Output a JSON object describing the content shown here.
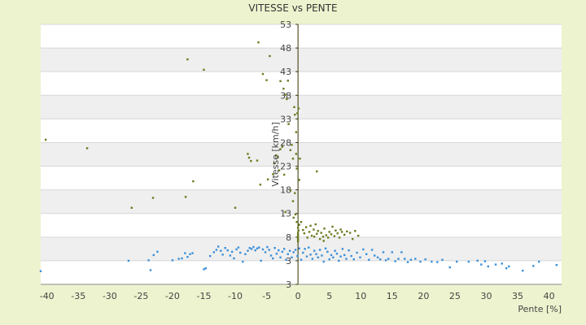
{
  "chart_data": {
    "type": "scatter",
    "title": "VITESSE vs PENTE",
    "xlabel": "Pente [%]",
    "ylabel": "Vitesse [km/h]",
    "xlim": [
      -41,
      42
    ],
    "ylim": [
      -2,
      53
    ],
    "x_ticks": [
      "-40",
      "-35",
      "-30",
      "-25",
      "-20",
      "-15",
      "-10",
      "-5",
      "0",
      "5",
      "10",
      "15",
      "20",
      "25",
      "30",
      "35",
      "40"
    ],
    "y_ticks": [
      "3",
      "3",
      "8",
      "13",
      "18",
      "23",
      "28",
      "33",
      "38",
      "43",
      "48",
      "53"
    ],
    "grid": "horizontal",
    "legend": "none",
    "colors": {
      "series_green": "#6b7a1e",
      "series_blue": "#3a8fd8",
      "band_light": "#ffffff",
      "band_dark": "#efefef",
      "axis": "#333300"
    },
    "series": [
      {
        "color": "green",
        "points": [
          [
            -40.2,
            28.6
          ],
          [
            -33.6,
            26.8
          ],
          [
            -26.5,
            14.2
          ],
          [
            -23.1,
            16.3
          ],
          [
            -17.9,
            16.5
          ],
          [
            -17.6,
            45.6
          ],
          [
            -16.7,
            19.8
          ],
          [
            -15,
            43.4
          ],
          [
            -10,
            14.2
          ],
          [
            -8,
            25.6
          ],
          [
            -7.8,
            24.8
          ],
          [
            -7.5,
            24.1
          ],
          [
            -6.5,
            24.2
          ],
          [
            -6.3,
            49.2
          ],
          [
            -6,
            19.1
          ],
          [
            -5.6,
            42.5
          ],
          [
            -5,
            41.2
          ],
          [
            -4.5,
            46.3
          ],
          [
            -4.8,
            20.2
          ],
          [
            -4,
            21.3
          ],
          [
            -3.8,
            23.6
          ],
          [
            -3.5,
            25.3
          ],
          [
            -3.2,
            24.9
          ],
          [
            -3,
            22.1
          ],
          [
            -2.8,
            26.6
          ],
          [
            -2.5,
            27.1
          ],
          [
            -2.2,
            21.2
          ],
          [
            -2.8,
            41
          ],
          [
            -2.3,
            39.4
          ],
          [
            -2,
            38.1
          ],
          [
            -1.8,
            37.2
          ],
          [
            -1.6,
            41.1
          ],
          [
            -1.5,
            31.9
          ],
          [
            -1.2,
            26.4
          ],
          [
            -1,
            27.5
          ],
          [
            -0.8,
            24.6
          ],
          [
            -0.6,
            35.5
          ],
          [
            -0.5,
            33.9
          ],
          [
            -0.3,
            30.2
          ],
          [
            -0.2,
            22.5
          ],
          [
            -0.5,
            17.3
          ],
          [
            -0.8,
            15.6
          ],
          [
            -1.2,
            17.9
          ],
          [
            -2,
            13.3
          ],
          [
            -0.7,
            12.1
          ],
          [
            -0.4,
            12.8
          ],
          [
            -0.2,
            11.2
          ],
          [
            -0.1,
            34.2
          ],
          [
            0.1,
            35.2
          ],
          [
            0.2,
            20.1
          ],
          [
            0.3,
            24.6
          ],
          [
            -0.3,
            25.6
          ],
          [
            0,
            7.1
          ],
          [
            0,
            7.4
          ],
          [
            0,
            7.7
          ],
          [
            0,
            8.1
          ],
          [
            0,
            8.5
          ],
          [
            0,
            8.9
          ],
          [
            0.1,
            9.4
          ],
          [
            0,
            10
          ],
          [
            0.2,
            10.6
          ],
          [
            0.5,
            11.2
          ],
          [
            0.8,
            9.5
          ],
          [
            1,
            8.8
          ],
          [
            1.3,
            10.1
          ],
          [
            1.5,
            7.9
          ],
          [
            1.8,
            9.1
          ],
          [
            2,
            10.4
          ],
          [
            2.2,
            8.3
          ],
          [
            2.5,
            9.6
          ],
          [
            2.8,
            10.7
          ],
          [
            3,
            8.7
          ],
          [
            3.2,
            9.3
          ],
          [
            3.5,
            7.6
          ],
          [
            3.7,
            8.9
          ],
          [
            4,
            8.1
          ],
          [
            4.2,
            9.8
          ],
          [
            4.5,
            8.4
          ],
          [
            4.8,
            7.9
          ],
          [
            5,
            9.1
          ],
          [
            5.3,
            8.6
          ],
          [
            5.5,
            10.2
          ],
          [
            5.8,
            8.2
          ],
          [
            6,
            9.4
          ],
          [
            6.3,
            8.8
          ],
          [
            6.6,
            7.9
          ],
          [
            7,
            9.1
          ],
          [
            7.4,
            8.5
          ],
          [
            7.8,
            9.2
          ],
          [
            8.3,
            8.9
          ],
          [
            8.7,
            7.6
          ],
          [
            9.1,
            9.3
          ],
          [
            9.6,
            8.3
          ],
          [
            3,
            21.9
          ],
          [
            2.6,
            8.1
          ],
          [
            4.1,
            7.2
          ],
          [
            6.8,
            9.6
          ]
        ]
      },
      {
        "color": "blue",
        "points": [
          [
            -41,
            0.8
          ],
          [
            -27,
            3
          ],
          [
            -23.8,
            3.1
          ],
          [
            -23.5,
            1
          ],
          [
            -23,
            4.2
          ],
          [
            -22.4,
            4.9
          ],
          [
            -20,
            3.1
          ],
          [
            -19,
            3.4
          ],
          [
            -18.5,
            3.5
          ],
          [
            -18,
            4.6
          ],
          [
            -17.6,
            3.8
          ],
          [
            -17.2,
            4.4
          ],
          [
            -16.8,
            4.6
          ],
          [
            -15,
            1.2
          ],
          [
            -14.7,
            1.4
          ],
          [
            -14,
            4
          ],
          [
            -13.4,
            4.8
          ],
          [
            -13,
            5.3
          ],
          [
            -12.7,
            6
          ],
          [
            -12.3,
            5.1
          ],
          [
            -12,
            4.3
          ],
          [
            -11.6,
            5.7
          ],
          [
            -11.2,
            5.2
          ],
          [
            -10.8,
            4.1
          ],
          [
            -10.5,
            4.9
          ],
          [
            -10.2,
            3.5
          ],
          [
            -9.8,
            5.4
          ],
          [
            -9.5,
            5.8
          ],
          [
            -9.2,
            4.7
          ],
          [
            -8.8,
            2.8
          ],
          [
            -8.4,
            4.4
          ],
          [
            -8,
            5.1
          ],
          [
            -7.7,
            5.7
          ],
          [
            -7.4,
            5.5
          ],
          [
            -7.1,
            5.9
          ],
          [
            -6.8,
            5.2
          ],
          [
            -6.5,
            5.6
          ],
          [
            -6.2,
            5.8
          ],
          [
            -5.9,
            3
          ],
          [
            -5.6,
            5.4
          ],
          [
            -5.2,
            4.8
          ],
          [
            -4.9,
            5.9
          ],
          [
            -4.6,
            5.3
          ],
          [
            -4.3,
            4.1
          ],
          [
            -4,
            3.5
          ],
          [
            -3.7,
            5.7
          ],
          [
            -3.4,
            4.5
          ],
          [
            -3.1,
            5.2
          ],
          [
            -2.8,
            3.7
          ],
          [
            -2.5,
            4.9
          ],
          [
            -2.2,
            5.5
          ],
          [
            -1.9,
            3.2
          ],
          [
            -1.6,
            4.4
          ],
          [
            -1.3,
            5.1
          ],
          [
            -1,
            3.7
          ],
          [
            -0.7,
            4.8
          ],
          [
            -0.4,
            5.3
          ],
          [
            -0.1,
            4
          ],
          [
            0.2,
            5.6
          ],
          [
            0.5,
            3.2
          ],
          [
            0.8,
            4.7
          ],
          [
            1.1,
            5.5
          ],
          [
            1.4,
            3.9
          ],
          [
            1.7,
            5.8
          ],
          [
            2,
            4.3
          ],
          [
            2.3,
            3.4
          ],
          [
            2.6,
            5.1
          ],
          [
            2.9,
            4.4
          ],
          [
            3.2,
            3.7
          ],
          [
            3.5,
            5.3
          ],
          [
            3.8,
            4.1
          ],
          [
            4.1,
            2.8
          ],
          [
            4.4,
            5.6
          ],
          [
            4.7,
            4.9
          ],
          [
            5,
            3.3
          ],
          [
            5.3,
            4.2
          ],
          [
            5.6,
            3.7
          ],
          [
            5.9,
            5.1
          ],
          [
            6.2,
            4.5
          ],
          [
            6.5,
            3
          ],
          [
            6.8,
            3.9
          ],
          [
            7.1,
            5.5
          ],
          [
            7.4,
            4.2
          ],
          [
            7.7,
            3.4
          ],
          [
            8.1,
            5.2
          ],
          [
            8.5,
            4
          ],
          [
            8.9,
            3.3
          ],
          [
            9.4,
            4.7
          ],
          [
            9.9,
            3.7
          ],
          [
            10.4,
            5.4
          ],
          [
            10.9,
            4.4
          ],
          [
            11.3,
            3.2
          ],
          [
            11.8,
            5.3
          ],
          [
            12.2,
            4.1
          ],
          [
            12.7,
            3.7
          ],
          [
            13.1,
            3.3
          ],
          [
            13.6,
            4.8
          ],
          [
            14,
            3.1
          ],
          [
            14.4,
            3.4
          ],
          [
            15,
            4.8
          ],
          [
            15.5,
            2.9
          ],
          [
            16,
            3.4
          ],
          [
            16.5,
            4.8
          ],
          [
            17,
            3.4
          ],
          [
            17.5,
            2.7
          ],
          [
            18,
            3.2
          ],
          [
            18.7,
            3.4
          ],
          [
            19.5,
            2.8
          ],
          [
            20.3,
            3.3
          ],
          [
            21.3,
            2.8
          ],
          [
            22.2,
            2.7
          ],
          [
            23,
            3.2
          ],
          [
            24.2,
            1.6
          ],
          [
            25.3,
            2.8
          ],
          [
            27.2,
            2.8
          ],
          [
            28.6,
            3
          ],
          [
            29.2,
            2.2
          ],
          [
            29.8,
            2.9
          ],
          [
            30.3,
            1.8
          ],
          [
            31.5,
            2.2
          ],
          [
            32.5,
            2.4
          ],
          [
            33.2,
            1.4
          ],
          [
            33.6,
            1.8
          ],
          [
            35.8,
            0.9
          ],
          [
            37.5,
            1.9
          ],
          [
            38.4,
            2.8
          ],
          [
            41.2,
            2.1
          ]
        ]
      }
    ]
  }
}
